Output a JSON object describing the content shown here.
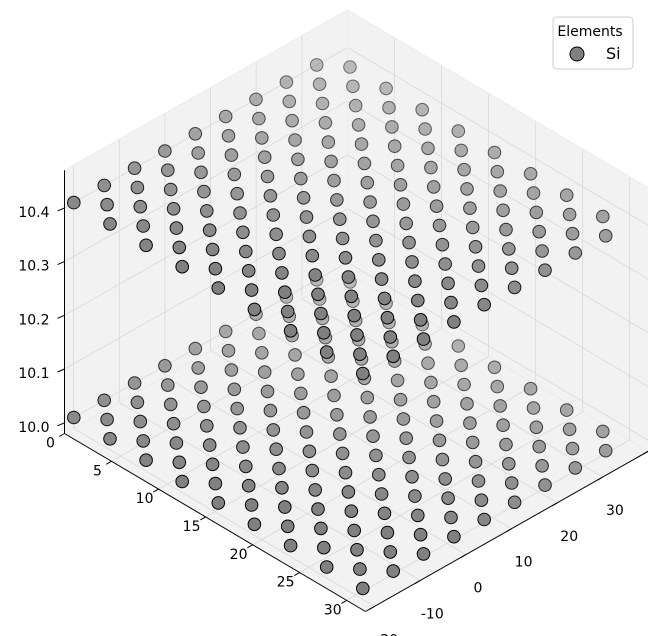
{
  "chart_data": {
    "type": "scatter",
    "projection": "3d",
    "title": "",
    "xlabel": "",
    "ylabel": "",
    "zlabel": "",
    "x_axis": {
      "range": [
        0,
        32
      ],
      "ticks": [
        0,
        5,
        10,
        15,
        20,
        25,
        30
      ]
    },
    "y_axis": {
      "range": [
        -22,
        40
      ],
      "ticks": [
        -20,
        -10,
        0,
        10,
        20,
        30,
        40
      ]
    },
    "z_axis": {
      "range": [
        9.98,
        10.47
      ],
      "ticks": [
        10.0,
        10.1,
        10.2,
        10.3,
        10.4
      ],
      "tick_labels": [
        "10.0",
        "10.1",
        "10.2",
        "10.3",
        "10.4"
      ]
    },
    "grid": true,
    "legend": {
      "title": "Elements",
      "placement": "top-right",
      "entries": [
        {
          "name": "Si",
          "color": "#808080"
        }
      ]
    },
    "series": [
      {
        "name": "Si",
        "color": "#808080",
        "edge_color": "#000000",
        "lattice": {
          "a1": [
            3.84,
            0.0
          ],
          "a2": [
            1.92,
            3.3255
          ],
          "i_range": [
            -6,
            14
          ],
          "j_range": [
            -11,
            14
          ],
          "x_range": [
            0.0,
            32.0
          ],
          "y_range": [
            -20.0,
            37.0
          ]
        },
        "layers_z": [
          10.0,
          10.4
        ]
      }
    ]
  },
  "colors": {
    "pane": "#f2f2f2",
    "grid": "#d9d9d9",
    "marker": "#808080",
    "marker_edge": "#000000"
  }
}
